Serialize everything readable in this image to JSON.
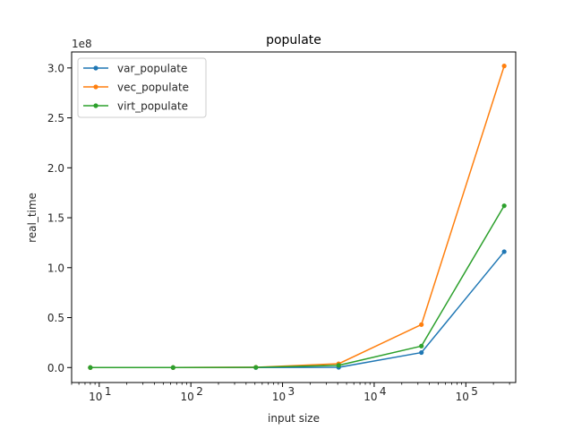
{
  "chart_data": {
    "type": "line",
    "title": "populate",
    "xlabel": "input size",
    "ylabel": "real_time",
    "xscale": "log",
    "y_offset_label": "1e8",
    "x": [
      8,
      64,
      512,
      4096,
      32768,
      262144
    ],
    "xlim": [
      5,
      350000
    ],
    "ylim": [
      -15000000,
      316000000
    ],
    "x_ticks": [
      10,
      100,
      1000,
      10000,
      100000
    ],
    "x_tick_labels": [
      {
        "base": "10",
        "exp": "1"
      },
      {
        "base": "10",
        "exp": "2"
      },
      {
        "base": "10",
        "exp": "3"
      },
      {
        "base": "10",
        "exp": "4"
      },
      {
        "base": "10",
        "exp": "5"
      }
    ],
    "y_ticks": [
      0,
      50000000,
      100000000,
      150000000,
      200000000,
      250000000,
      300000000
    ],
    "y_tick_labels": [
      "0.0",
      "0.5",
      "1.0",
      "1.5",
      "2.0",
      "2.5",
      "3.0"
    ],
    "grid": false,
    "legend_position": "upper-left",
    "series": [
      {
        "name": "var_populate",
        "color": "#1f77b4",
        "values": [
          0,
          0,
          0,
          200000,
          15000000,
          116000000
        ]
      },
      {
        "name": "vec_populate",
        "color": "#ff7f0e",
        "values": [
          0,
          0,
          300000,
          3800000,
          43000000,
          302000000
        ]
      },
      {
        "name": "virt_populate",
        "color": "#2ca02c",
        "values": [
          0,
          0,
          200000,
          2200000,
          21500000,
          162000000
        ]
      }
    ]
  }
}
